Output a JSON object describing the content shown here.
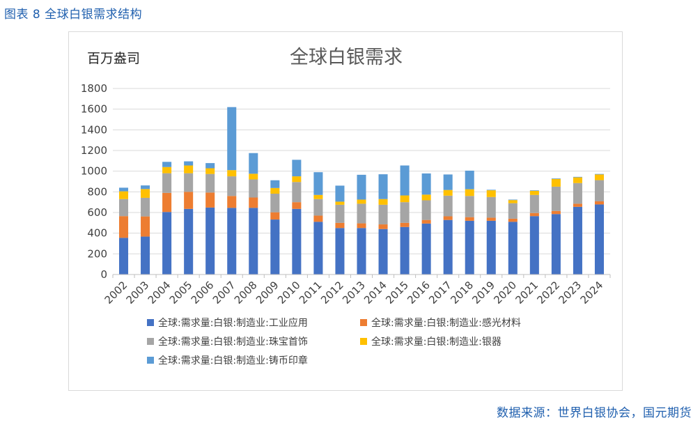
{
  "caption": "图表 8 全球白银需求结构",
  "source": "数据来源：世界白银协会，国元期货",
  "chart_data": {
    "type": "bar",
    "stacked": true,
    "title": "全球白银需求",
    "unit_label": "百万盎司",
    "ylim": [
      0,
      1800
    ],
    "yticks": [
      0,
      200,
      400,
      600,
      800,
      1000,
      1200,
      1400,
      1600,
      1800
    ],
    "grid": true,
    "legend_position": "bottom",
    "categories": [
      "2002",
      "2003",
      "2004",
      "2005",
      "2006",
      "2007",
      "2008",
      "2009",
      "2010",
      "2011",
      "2012",
      "2013",
      "2014",
      "2015",
      "2016",
      "2017",
      "2018",
      "2019",
      "2020",
      "2021",
      "2022",
      "2023",
      "2024"
    ],
    "series": [
      {
        "name": "全球:需求量:白银:制造业:工业应用",
        "color": "#4472c4",
        "values": [
          355,
          367,
          605,
          635,
          648,
          645,
          645,
          532,
          635,
          510,
          450,
          450,
          440,
          460,
          493,
          528,
          520,
          520,
          510,
          565,
          585,
          655,
          678
        ]
      },
      {
        "name": "全球:需求量:白银:制造业:感光材料",
        "color": "#ed7d31",
        "values": [
          210,
          195,
          185,
          165,
          145,
          115,
          100,
          70,
          65,
          60,
          50,
          45,
          45,
          40,
          35,
          35,
          35,
          30,
          30,
          30,
          30,
          30,
          30
        ]
      },
      {
        "name": "全球:需求量:白银:制造业:珠宝首饰",
        "color": "#a5a5a5",
        "values": [
          165,
          180,
          190,
          180,
          180,
          190,
          175,
          180,
          195,
          160,
          175,
          190,
          190,
          200,
          190,
          200,
          205,
          200,
          150,
          175,
          235,
          200,
          205
        ]
      },
      {
        "name": "全球:需求量:白银:制造业:银器",
        "color": "#ffc000",
        "values": [
          75,
          85,
          60,
          75,
          55,
          60,
          55,
          55,
          55,
          40,
          30,
          40,
          55,
          65,
          55,
          55,
          65,
          65,
          30,
          40,
          75,
          55,
          55
        ]
      },
      {
        "name": "全球:需求量:白银:制造业:铸币印章",
        "color": "#5b9bd5",
        "values": [
          35,
          35,
          50,
          40,
          50,
          610,
          200,
          75,
          160,
          220,
          155,
          240,
          240,
          290,
          205,
          150,
          180,
          5,
          5,
          5,
          5,
          5,
          5
        ]
      }
    ]
  }
}
